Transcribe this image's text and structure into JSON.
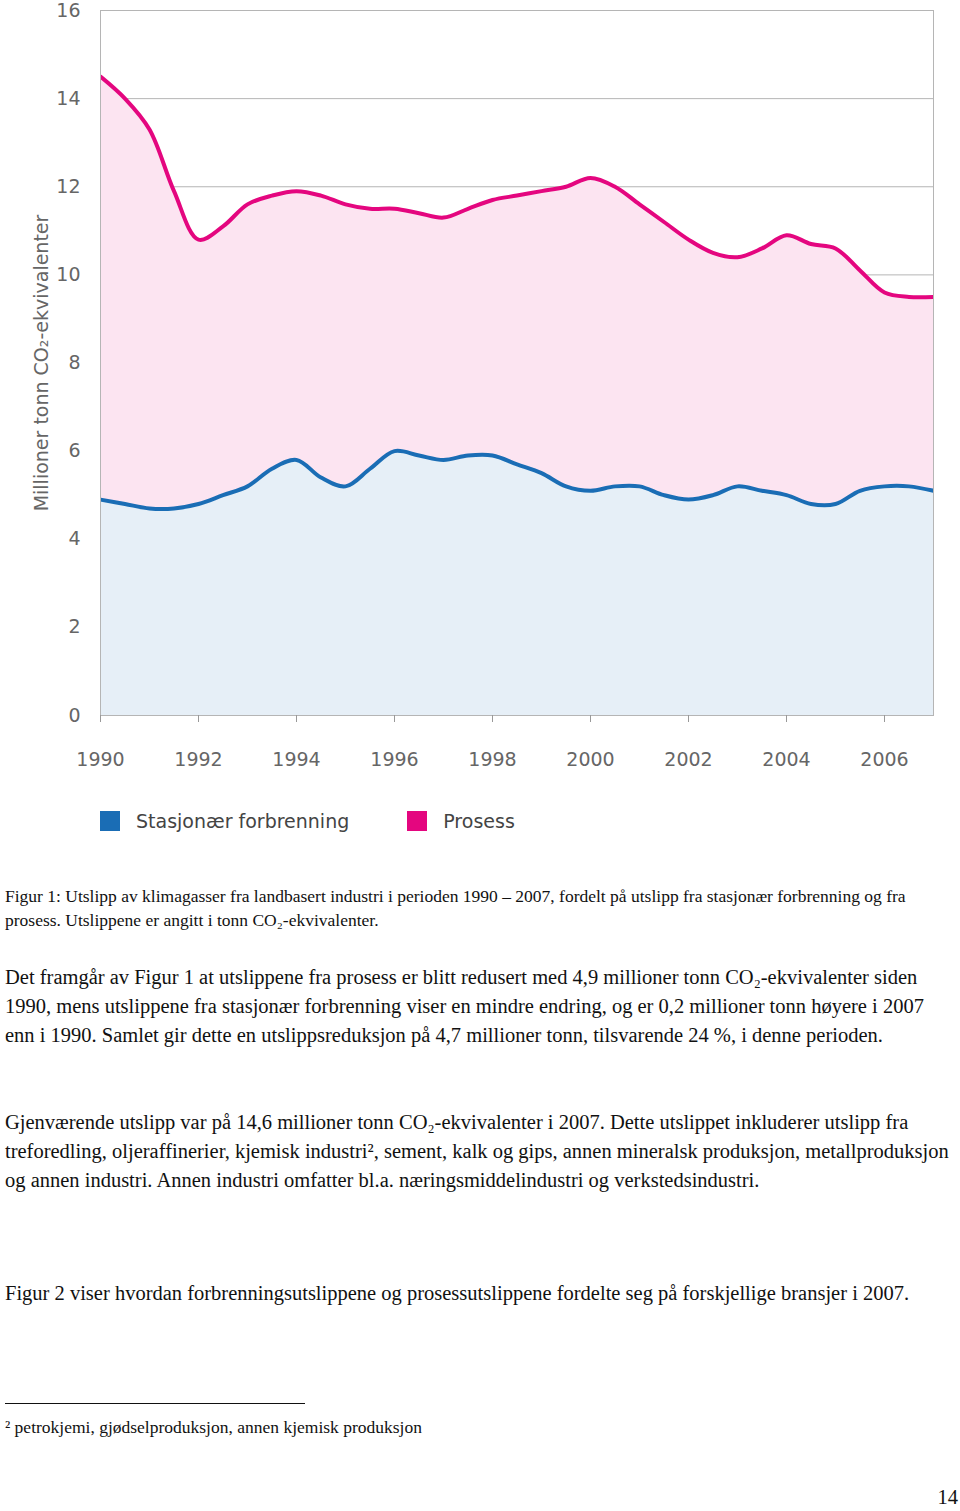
{
  "chart_data": {
    "type": "area",
    "ylabel": "Millioner tonn CO₂-ekvivalenter",
    "x": [
      1990,
      1990.5,
      1991,
      1991.5,
      1992,
      1992.5,
      1993,
      1993.5,
      1994,
      1994.5,
      1995,
      1995.5,
      1996,
      1996.5,
      1997,
      1997.5,
      1998,
      1998.5,
      1999,
      1999.5,
      2000,
      2000.5,
      2001,
      2001.5,
      2002,
      2002.5,
      2003,
      2003.5,
      2004,
      2004.5,
      2005,
      2005.5,
      2006,
      2006.5,
      2007
    ],
    "series": [
      {
        "name": "Stasjonær forbrenning",
        "color": "#1a6db5",
        "values": [
          4.9,
          4.8,
          4.7,
          4.7,
          4.8,
          5.0,
          5.2,
          5.6,
          5.8,
          5.4,
          5.2,
          5.6,
          6.0,
          5.9,
          5.8,
          5.9,
          5.9,
          5.7,
          5.5,
          5.2,
          5.1,
          5.2,
          5.2,
          5.0,
          4.9,
          5.0,
          5.2,
          5.1,
          5.0,
          4.8,
          4.8,
          5.1,
          5.2,
          5.2,
          5.1
        ]
      },
      {
        "name": "Prosess",
        "color": "#e4067f",
        "values": [
          14.5,
          14.0,
          13.3,
          11.9,
          10.8,
          11.1,
          11.6,
          11.8,
          11.9,
          11.8,
          11.6,
          11.5,
          11.5,
          11.4,
          11.3,
          11.5,
          11.7,
          11.8,
          11.9,
          12.0,
          12.2,
          12.0,
          11.6,
          11.2,
          10.8,
          10.5,
          10.4,
          10.6,
          10.9,
          10.7,
          10.6,
          10.1,
          9.6,
          9.5,
          9.5
        ]
      }
    ],
    "xlim": [
      1990,
      2007
    ],
    "xticks": [
      1990,
      1992,
      1994,
      1996,
      1998,
      2000,
      2002,
      2004,
      2006
    ],
    "ylim": [
      0,
      16
    ],
    "yticks": [
      0,
      2,
      4,
      6,
      8,
      10,
      12,
      14,
      16
    ],
    "grid": true,
    "legend": "bottom"
  },
  "document": {
    "caption": "Figur 1: Utslipp av klimagasser fra landbasert industri i perioden 1990 – 2007, fordelt på utslipp fra stasjonær forbrenning og fra prosess. Utslippene er angitt i tonn CO₂-ekvivalenter.",
    "paragraphs": [
      "Det framgår av Figur 1 at utslippene fra prosess er blitt redusert med 4,9 millioner tonn CO₂-ekvivalenter siden 1990, mens utslippene fra stasjonær forbrenning viser en mindre endring, og er 0,2 millioner tonn høyere i 2007 enn i 1990. Samlet gir dette en utslippsreduksjon på 4,7 millioner tonn, tilsvarende 24 %, i denne perioden.",
      "Gjenværende utslipp var på 14,6 millioner tonn CO₂-ekvivalenter i 2007. Dette utslippet inkluderer utslipp fra treforedling, oljeraffinerier, kjemisk industri², sement, kalk og gips, annen mineralsk produksjon, metallproduksjon og annen industri. Annen industri omfatter bl.a. næringsmiddelindustri og verkstedsindustri.",
      "Figur 2 viser hvordan forbrenningsutslippene og prosessutslippene fordelte seg på forskjellige bransjer i 2007."
    ],
    "footnote": "² petrokjemi, gjødselproduksjon, annen kjemisk produksjon",
    "page_number": "14"
  }
}
